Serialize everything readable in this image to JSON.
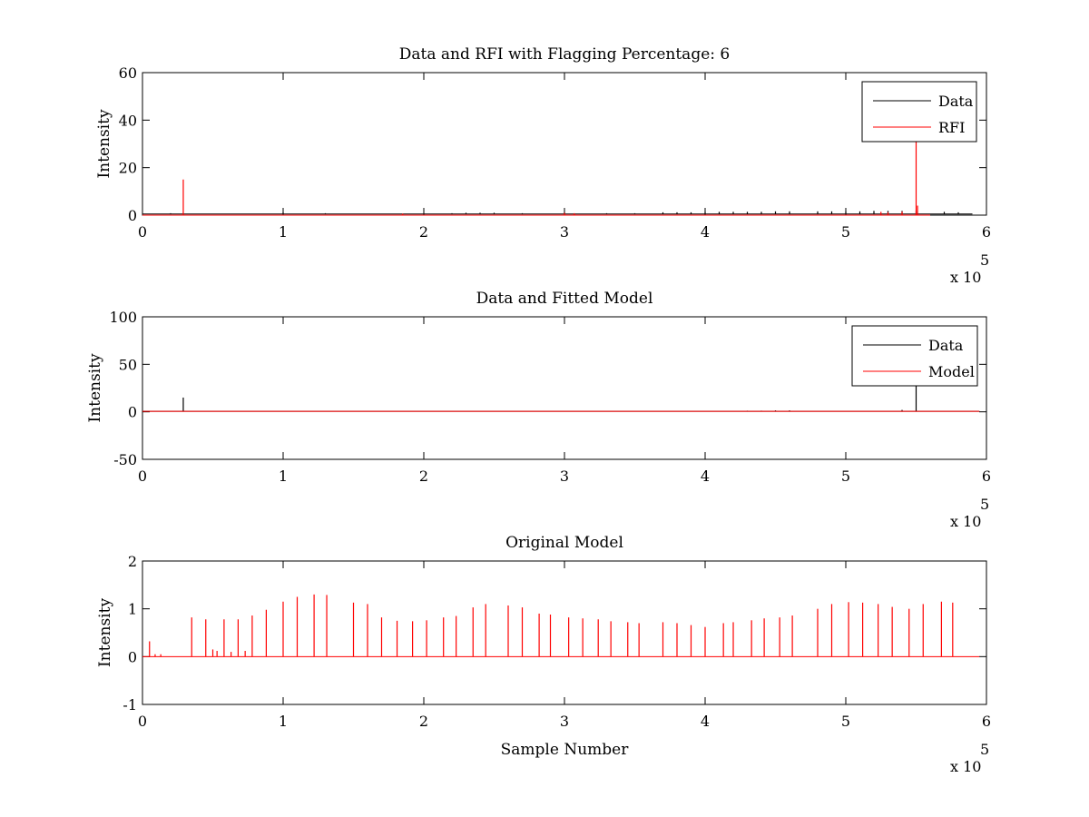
{
  "chart_data": [
    {
      "type": "line",
      "title": "Data and RFI with Flagging Percentage: 6",
      "xlabel": "",
      "ylabel": "Intensity",
      "xlim": [
        0,
        6
      ],
      "ylim": [
        0,
        60
      ],
      "x_multiplier": "x 10",
      "x_multiplier_exp": "5",
      "x_ticks": [
        "0",
        "1",
        "2",
        "3",
        "4",
        "5",
        "6"
      ],
      "y_ticks": [
        "0",
        "20",
        "40",
        "60"
      ],
      "legend_position": "top-right",
      "legend": [
        "Data",
        "RFI"
      ],
      "series": [
        {
          "name": "Data",
          "color": "#000000",
          "baseline": 0.5,
          "x_end": 5.9,
          "spikes": [
            [
              0.2,
              0.8
            ],
            [
              1.0,
              1.2
            ],
            [
              1.3,
              0.8
            ],
            [
              2.2,
              0.8
            ],
            [
              2.3,
              1.0
            ],
            [
              2.4,
              1.0
            ],
            [
              2.5,
              1.0
            ],
            [
              2.7,
              0.8
            ],
            [
              3.0,
              1.2
            ],
            [
              3.3,
              0.8
            ],
            [
              3.5,
              0.8
            ],
            [
              3.7,
              1.2
            ],
            [
              3.8,
              1.2
            ],
            [
              3.9,
              1.2
            ],
            [
              4.0,
              1.4
            ],
            [
              4.1,
              1.4
            ],
            [
              4.2,
              1.4
            ],
            [
              4.3,
              1.4
            ],
            [
              4.4,
              1.4
            ],
            [
              4.5,
              1.6
            ],
            [
              4.6,
              1.6
            ],
            [
              4.8,
              1.6
            ],
            [
              4.9,
              1.6
            ],
            [
              5.0,
              1.6
            ],
            [
              5.1,
              1.6
            ],
            [
              5.2,
              1.8
            ],
            [
              5.3,
              1.8
            ],
            [
              5.4,
              1.8
            ],
            [
              5.5,
              2.0
            ],
            [
              5.7,
              1.4
            ],
            [
              5.8,
              1.2
            ]
          ]
        },
        {
          "name": "RFI",
          "color": "#ff0000",
          "baseline": 0,
          "x_end": 5.6,
          "spikes": [
            [
              0.29,
              15
            ],
            [
              1.85,
              0.6
            ],
            [
              3.0,
              1.0
            ],
            [
              3.07,
              0.8
            ],
            [
              5.25,
              1.4
            ],
            [
              5.3,
              1.2
            ],
            [
              5.4,
              1.5
            ],
            [
              5.5,
              31
            ],
            [
              5.51,
              4
            ]
          ]
        }
      ]
    },
    {
      "type": "line",
      "title": "Data and Fitted Model",
      "xlabel": "",
      "ylabel": "Intensity",
      "xlim": [
        0,
        6
      ],
      "ylim": [
        -50,
        100
      ],
      "x_multiplier": "x 10",
      "x_multiplier_exp": "5",
      "x_ticks": [
        "0",
        "1",
        "2",
        "3",
        "4",
        "5",
        "6"
      ],
      "y_ticks": [
        "-50",
        "0",
        "50",
        "100"
      ],
      "legend_position": "top-right",
      "legend": [
        "Data",
        "Model"
      ],
      "series": [
        {
          "name": "Data",
          "color": "#000000",
          "baseline": 0.5,
          "x_end": 5.95,
          "spikes": [
            [
              0.29,
              15
            ],
            [
              4.3,
              1.2
            ],
            [
              4.4,
              1.2
            ],
            [
              4.5,
              1.5
            ],
            [
              4.6,
              1.5
            ],
            [
              5.4,
              2
            ],
            [
              5.5,
              28
            ]
          ]
        },
        {
          "name": "Model",
          "color": "#ff0000",
          "baseline": 0.5,
          "x_end": 5.95,
          "spikes": []
        }
      ]
    },
    {
      "type": "line",
      "title": "Original Model",
      "xlabel": "Sample Number",
      "ylabel": "Intensity",
      "xlim": [
        0,
        6
      ],
      "ylim": [
        -1,
        2
      ],
      "x_multiplier": "x 10",
      "x_multiplier_exp": "5",
      "x_ticks": [
        "0",
        "1",
        "2",
        "3",
        "4",
        "5",
        "6"
      ],
      "y_ticks": [
        "-1",
        "0",
        "1",
        "2"
      ],
      "legend_position": "none",
      "legend": [],
      "series": [
        {
          "name": "",
          "color": "#ff0000",
          "baseline": 0,
          "x_end": 5.95,
          "spikes": [
            [
              0.05,
              0.32
            ],
            [
              0.09,
              0.05
            ],
            [
              0.13,
              0.05
            ],
            [
              0.35,
              0.82
            ],
            [
              0.45,
              0.78
            ],
            [
              0.5,
              0.15
            ],
            [
              0.53,
              0.12
            ],
            [
              0.58,
              0.78
            ],
            [
              0.63,
              0.1
            ],
            [
              0.68,
              0.78
            ],
            [
              0.73,
              0.12
            ],
            [
              0.78,
              0.86
            ],
            [
              0.88,
              0.98
            ],
            [
              1.0,
              1.15
            ],
            [
              1.1,
              1.25
            ],
            [
              1.22,
              1.3
            ],
            [
              1.31,
              1.29
            ],
            [
              1.5,
              1.13
            ],
            [
              1.6,
              1.1
            ],
            [
              1.7,
              0.82
            ],
            [
              1.81,
              0.75
            ],
            [
              1.92,
              0.74
            ],
            [
              2.02,
              0.76
            ],
            [
              2.14,
              0.82
            ],
            [
              2.23,
              0.85
            ],
            [
              2.35,
              1.03
            ],
            [
              2.44,
              1.1
            ],
            [
              2.6,
              1.07
            ],
            [
              2.7,
              1.03
            ],
            [
              2.82,
              0.9
            ],
            [
              2.9,
              0.88
            ],
            [
              3.03,
              0.82
            ],
            [
              3.13,
              0.8
            ],
            [
              3.24,
              0.78
            ],
            [
              3.33,
              0.74
            ],
            [
              3.45,
              0.72
            ],
            [
              3.53,
              0.7
            ],
            [
              3.7,
              0.72
            ],
            [
              3.8,
              0.7
            ],
            [
              3.9,
              0.66
            ],
            [
              4.0,
              0.62
            ],
            [
              4.13,
              0.7
            ],
            [
              4.2,
              0.72
            ],
            [
              4.33,
              0.76
            ],
            [
              4.42,
              0.8
            ],
            [
              4.53,
              0.82
            ],
            [
              4.62,
              0.86
            ],
            [
              4.8,
              1.0
            ],
            [
              4.9,
              1.1
            ],
            [
              5.02,
              1.14
            ],
            [
              5.12,
              1.13
            ],
            [
              5.23,
              1.1
            ],
            [
              5.33,
              1.04
            ],
            [
              5.45,
              1.0
            ],
            [
              5.55,
              1.1
            ],
            [
              5.68,
              1.15
            ],
            [
              5.76,
              1.13
            ]
          ]
        }
      ]
    }
  ]
}
